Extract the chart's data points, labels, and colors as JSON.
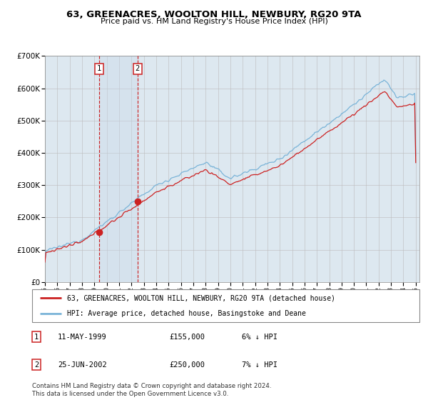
{
  "title": "63, GREENACRES, WOOLTON HILL, NEWBURY, RG20 9TA",
  "subtitle": "Price paid vs. HM Land Registry's House Price Index (HPI)",
  "y_min": 0,
  "y_max": 700000,
  "yticks": [
    0,
    100000,
    200000,
    300000,
    400000,
    500000,
    600000,
    700000
  ],
  "ytick_labels": [
    "£0",
    "£100K",
    "£200K",
    "£300K",
    "£400K",
    "£500K",
    "£600K",
    "£700K"
  ],
  "hpi_color": "#7ab4d8",
  "price_color": "#cc2222",
  "marker_color": "#cc2222",
  "plot_bg_color": "#dde8f0",
  "grid_color": "#bbbbbb",
  "sale1_year": 1999.37,
  "sale1_price": 155000,
  "sale2_year": 2002.48,
  "sale2_price": 250000,
  "legend1_label": "63, GREENACRES, WOOLTON HILL, NEWBURY, RG20 9TA (detached house)",
  "legend2_label": "HPI: Average price, detached house, Basingstoke and Deane",
  "footnote": "Contains HM Land Registry data © Crown copyright and database right 2024.\nThis data is licensed under the Open Government Licence v3.0.",
  "table_row1": [
    "1",
    "11-MAY-1999",
    "£155,000",
    "6% ↓ HPI"
  ],
  "table_row2": [
    "2",
    "25-JUN-2002",
    "£250,000",
    "7% ↓ HPI"
  ]
}
